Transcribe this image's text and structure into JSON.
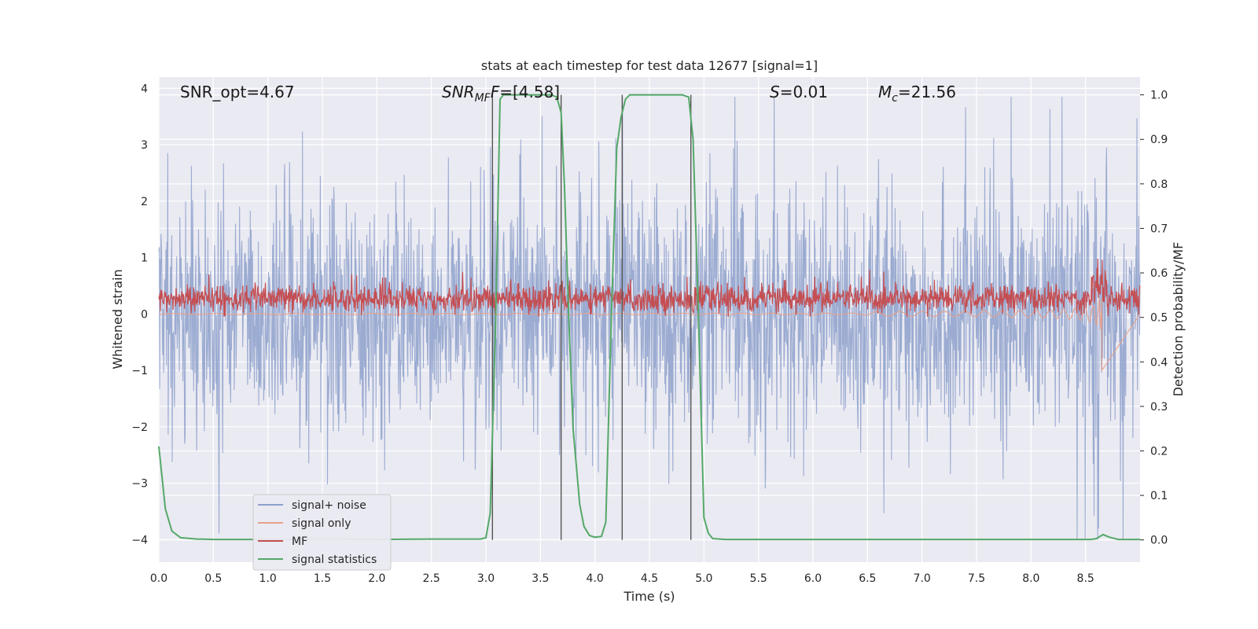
{
  "chart_data": {
    "type": "line",
    "title": "stats at each timestep for test data 12677 [signal=1]",
    "xlabel": "Time (s)",
    "ylabel_left": "Whitened strain",
    "ylabel_right": "Detection probability/MF",
    "xlim": [
      0.0,
      9.0
    ],
    "ylim_left": [
      -4.4,
      4.2
    ],
    "ylim_right": [
      -0.05,
      1.04
    ],
    "xticks": [
      "0.0",
      "0.5",
      "1.0",
      "1.5",
      "2.0",
      "2.5",
      "3.0",
      "3.5",
      "4.0",
      "4.5",
      "5.0",
      "5.5",
      "6.0",
      "6.5",
      "7.0",
      "7.5",
      "8.0",
      "8.5"
    ],
    "yticks_left": [
      "−4",
      "−3",
      "−2",
      "−1",
      "0",
      "1",
      "2",
      "3",
      "4"
    ],
    "yticks_right": [
      "0.0",
      "0.1",
      "0.2",
      "0.3",
      "0.4",
      "0.5",
      "0.6",
      "0.7",
      "0.8",
      "0.9",
      "1.0"
    ],
    "grid": true,
    "legend_position": "lower-left",
    "annotations": {
      "snr_opt": "SNR_opt=4.67",
      "snr_mf_main": "SNR",
      "snr_mf_sub": "MF",
      "snr_mf_rest": "=[4.58]",
      "s_sym": "S",
      "s_val": "=0.01",
      "mc_sym": "M",
      "mc_sub": "c",
      "mc_val": "=21.56"
    },
    "vertical_lines_s": [
      3.06,
      3.69,
      4.25,
      4.88
    ],
    "series": [
      {
        "name": "signal+ noise",
        "color": "#8da0cb",
        "axis": "left",
        "description": "whitened noise trace, amplitude roughly ±2 with spikes to ±3.8"
      },
      {
        "name": "signal only",
        "color": "#e8a08a",
        "axis": "left",
        "description": "chirp signal growing from ~7.0 s to merger at ~8.65 s, peak amplitude about -1.0"
      },
      {
        "name": "MF",
        "color": "#c44e52",
        "axis": "left",
        "description": "matched-filter output centered near 0.3 with fluctuations to ~0.85"
      },
      {
        "name": "signal statistics",
        "color": "#55a868",
        "axis": "right",
        "points": [
          [
            0.0,
            0.21
          ],
          [
            0.06,
            0.07
          ],
          [
            0.12,
            0.02
          ],
          [
            0.2,
            0.005
          ],
          [
            0.35,
            0.002
          ],
          [
            0.5,
            0.001
          ],
          [
            1.0,
            0.001
          ],
          [
            1.5,
            0.002
          ],
          [
            2.0,
            0.001
          ],
          [
            2.5,
            0.002
          ],
          [
            2.95,
            0.002
          ],
          [
            3.0,
            0.005
          ],
          [
            3.04,
            0.06
          ],
          [
            3.09,
            0.5
          ],
          [
            3.13,
            0.99
          ],
          [
            3.16,
            1.0
          ],
          [
            3.4,
            1.0
          ],
          [
            3.6,
            1.0
          ],
          [
            3.65,
            0.995
          ],
          [
            3.69,
            0.96
          ],
          [
            3.72,
            0.8
          ],
          [
            3.76,
            0.5
          ],
          [
            3.8,
            0.25
          ],
          [
            3.86,
            0.08
          ],
          [
            3.9,
            0.03
          ],
          [
            3.95,
            0.01
          ],
          [
            4.0,
            0.006
          ],
          [
            4.06,
            0.008
          ],
          [
            4.1,
            0.04
          ],
          [
            4.15,
            0.5
          ],
          [
            4.2,
            0.88
          ],
          [
            4.24,
            0.95
          ],
          [
            4.28,
            0.99
          ],
          [
            4.32,
            1.0
          ],
          [
            4.5,
            1.0
          ],
          [
            4.7,
            1.0
          ],
          [
            4.8,
            1.0
          ],
          [
            4.86,
            0.995
          ],
          [
            4.9,
            0.9
          ],
          [
            4.95,
            0.5
          ],
          [
            5.0,
            0.05
          ],
          [
            5.04,
            0.015
          ],
          [
            5.08,
            0.003
          ],
          [
            5.2,
            0.001
          ],
          [
            6.0,
            0.001
          ],
          [
            7.0,
            0.001
          ],
          [
            8.0,
            0.001
          ],
          [
            8.55,
            0.001
          ],
          [
            8.6,
            0.003
          ],
          [
            8.66,
            0.012
          ],
          [
            8.72,
            0.006
          ],
          [
            8.8,
            0.001
          ],
          [
            9.0,
            0.001
          ]
        ]
      }
    ]
  }
}
